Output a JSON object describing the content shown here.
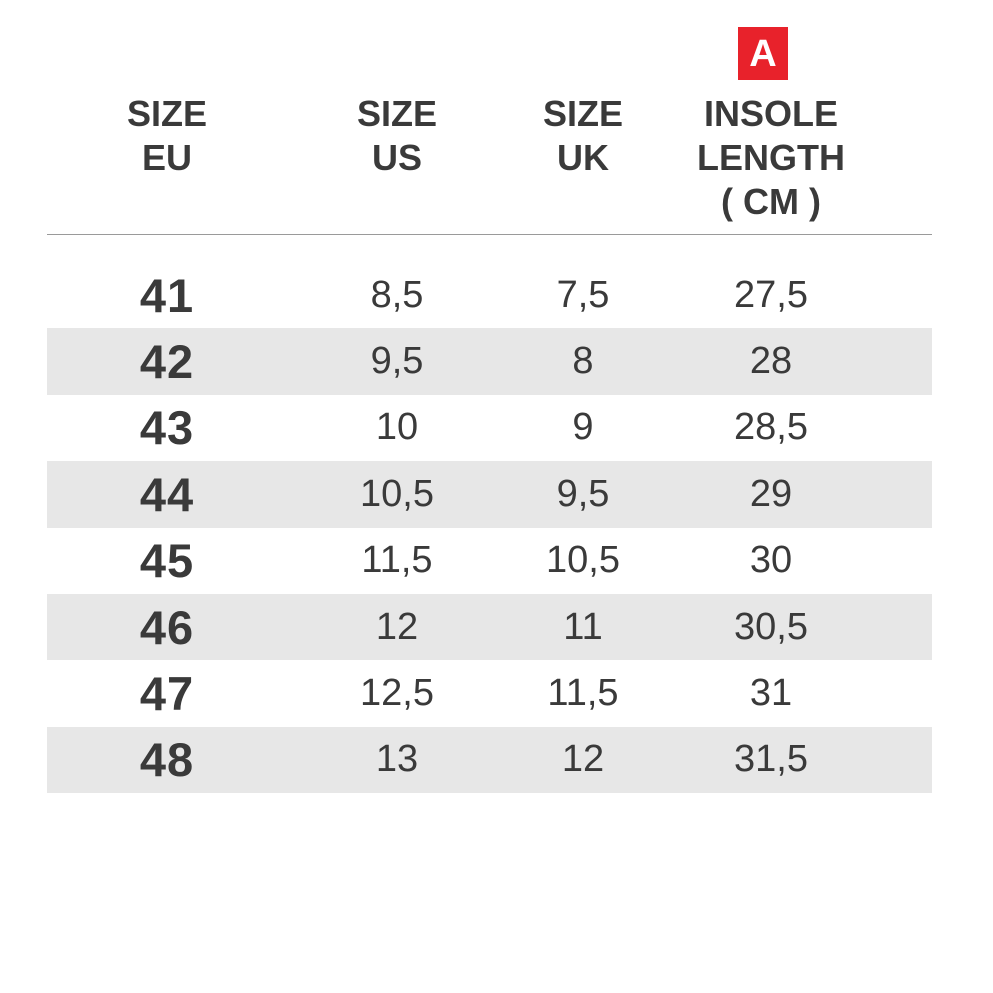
{
  "colors": {
    "red": "#e8222b",
    "ink": "#3a3a3a",
    "stripe": "#e7e7e7",
    "divider": "#9a9a9a",
    "background": "#ffffff"
  },
  "badge": {
    "label": "A"
  },
  "chart_data": {
    "type": "table",
    "title": "",
    "column_titles": [
      "SIZE EU",
      "SIZE US",
      "SIZE UK",
      "INSOLE LENGTH ( CM )"
    ],
    "header": [
      {
        "lines": [
          "SIZE",
          "EU"
        ]
      },
      {
        "lines": [
          "SIZE",
          "US"
        ]
      },
      {
        "lines": [
          "SIZE",
          "UK"
        ]
      },
      {
        "lines": [
          "INSOLE",
          "LENGTH",
          "( CM )"
        ]
      }
    ],
    "annotation": {
      "badge_label": "A",
      "badge_points_to": "INSOLE LENGTH ( CM )"
    },
    "rows": [
      [
        "41",
        "8,5",
        "7,5",
        "27,5"
      ],
      [
        "42",
        "9,5",
        "8",
        "28"
      ],
      [
        "43",
        "10",
        "9",
        "28,5"
      ],
      [
        "44",
        "10,5",
        "9,5",
        "29"
      ],
      [
        "45",
        "11,5",
        "10,5",
        "30"
      ],
      [
        "46",
        "12",
        "11",
        "30,5"
      ],
      [
        "47",
        "12,5",
        "11,5",
        "31"
      ],
      [
        "48",
        "13",
        "12",
        "31,5"
      ]
    ]
  }
}
